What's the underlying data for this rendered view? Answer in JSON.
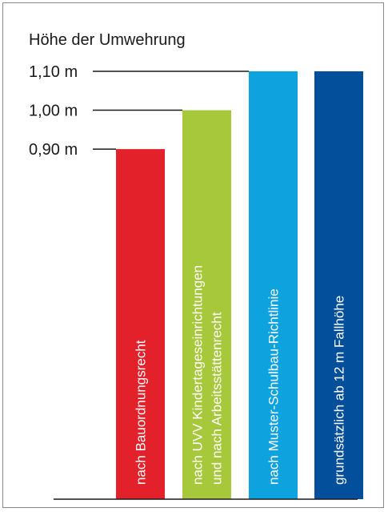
{
  "chart_data": {
    "type": "bar",
    "title": "Höhe der Umwehrung",
    "xlabel": "",
    "ylabel": "",
    "ylim": [
      0,
      1.1
    ],
    "y_ticks": [
      {
        "value": 0.9,
        "label": "0,90 m"
      },
      {
        "value": 1.0,
        "label": "1,00 m"
      },
      {
        "value": 1.1,
        "label": "1,10 m"
      }
    ],
    "categories": [
      [
        "nach Bauordnungsrecht"
      ],
      [
        "nach UVV Kindertageseinrichtungen",
        "und nach Arbeitsstättenrecht"
      ],
      [
        "nach Muster-Schulbau-Richtlinie"
      ],
      [
        "grundsätzlich ab 12 m Fallhöhe"
      ]
    ],
    "values": [
      0.9,
      1.0,
      1.1,
      1.1
    ],
    "colors": [
      "#e2212a",
      "#a6c83a",
      "#0ea2de",
      "#034f9b"
    ],
    "grid": false,
    "legend": "none"
  }
}
